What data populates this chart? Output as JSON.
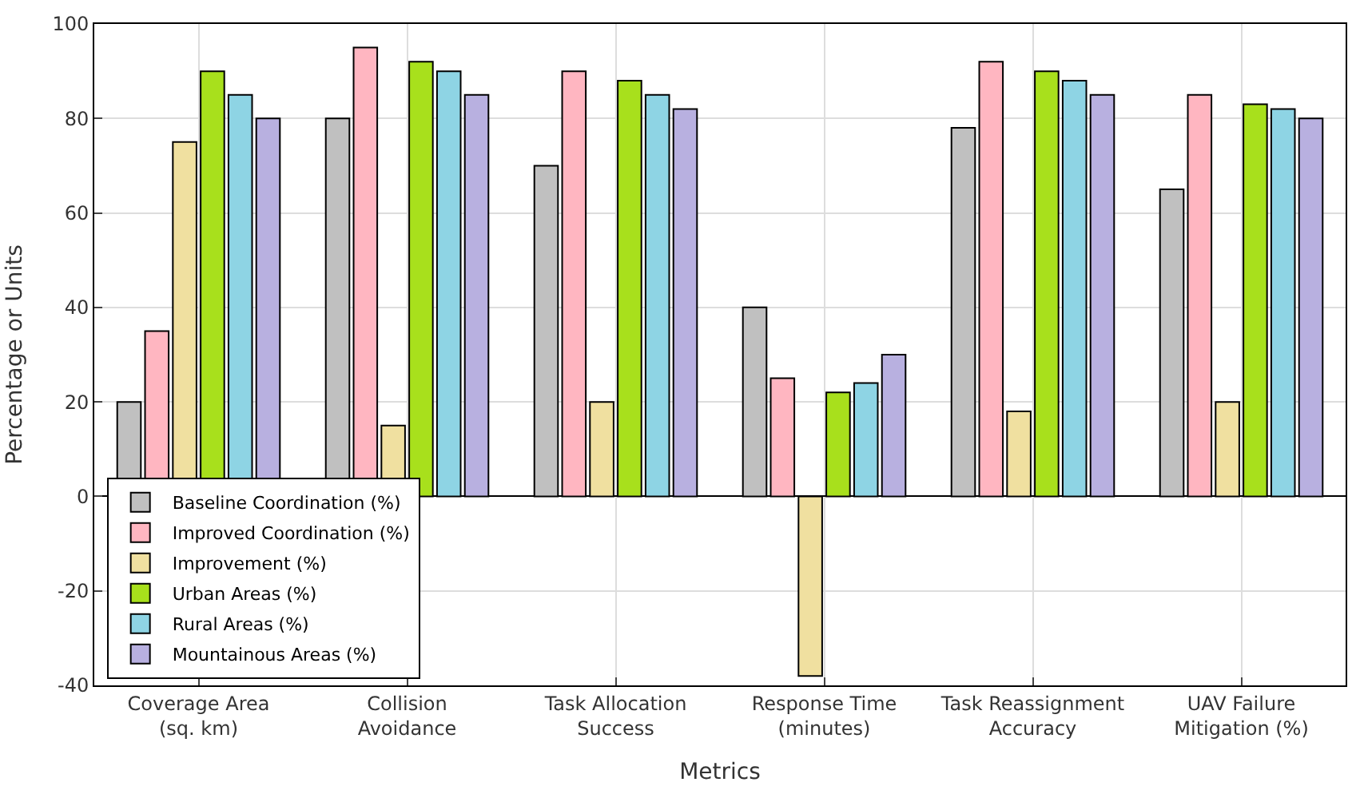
{
  "chart_data": {
    "type": "bar",
    "xlabel": "Metrics",
    "ylabel": "Percentage or Units",
    "categories": [
      "Coverage Area (sq. km)",
      "Collision Avoidance",
      "Task Allocation Success",
      "Response Time (minutes)",
      "Task Reassignment Accuracy",
      "UAV Failure Mitigation (%)"
    ],
    "series": [
      {
        "name": "Baseline Coordination (%)",
        "color": "#c0c0c0",
        "values": [
          20,
          80,
          70,
          40,
          78,
          65
        ]
      },
      {
        "name": "Improved Coordination (%)",
        "color": "#ffb6c1",
        "values": [
          35,
          95,
          90,
          25,
          92,
          85
        ]
      },
      {
        "name": "Improvement (%)",
        "color": "#f0e0a0",
        "values": [
          75,
          15,
          20,
          -38,
          18,
          20
        ]
      },
      {
        "name": "Urban Areas (%)",
        "color": "#a8e01c",
        "values": [
          90,
          92,
          88,
          22,
          90,
          83
        ]
      },
      {
        "name": "Rural Areas (%)",
        "color": "#8ed4e4",
        "values": [
          85,
          90,
          85,
          24,
          88,
          82
        ]
      },
      {
        "name": "Mountainous Areas (%)",
        "color": "#b8b0e0",
        "values": [
          80,
          85,
          82,
          30,
          85,
          80
        ]
      }
    ],
    "ylim": [
      -40,
      100
    ],
    "yticks": [
      -40,
      -20,
      0,
      20,
      40,
      60,
      80,
      100
    ],
    "grid": true,
    "legend": "bottom left"
  }
}
